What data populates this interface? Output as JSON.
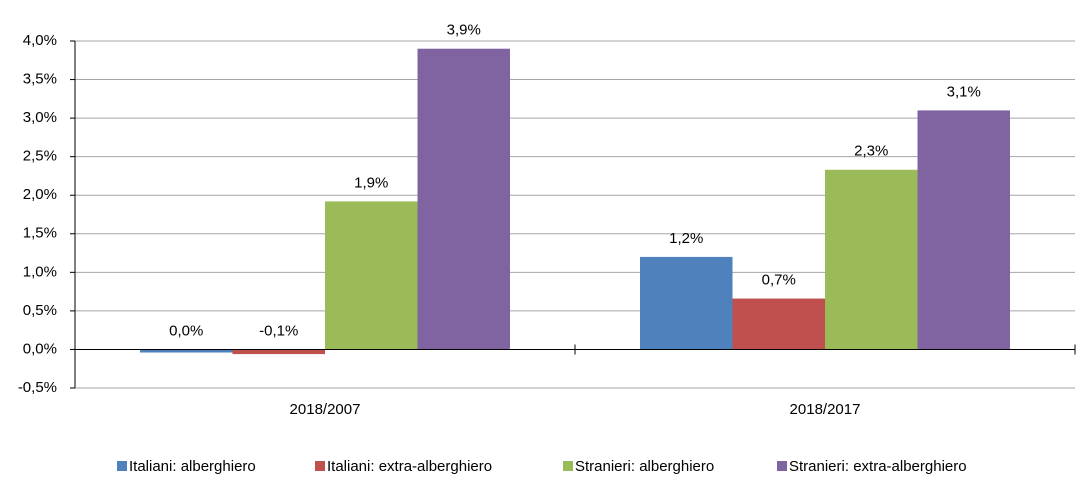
{
  "chart_data": {
    "type": "bar",
    "categories": [
      "2018/2007",
      "2018/2017"
    ],
    "series": [
      {
        "name": "Italiani: alberghiero",
        "color": "#4f81bd",
        "values": [
          -0.04,
          1.2
        ],
        "value_labels": [
          "0,0%",
          "1,2%"
        ]
      },
      {
        "name": "Italiani: extra-alberghiero",
        "color": "#c0504d",
        "values": [
          -0.06,
          0.66
        ],
        "value_labels": [
          "-0,1%",
          "0,7%"
        ]
      },
      {
        "name": "Stranieri: alberghiero",
        "color": "#9bbb59",
        "values": [
          1.92,
          2.33
        ],
        "value_labels": [
          "1,9%",
          "2,3%"
        ]
      },
      {
        "name": "Stranieri: extra-alberghiero",
        "color": "#8064a2",
        "values": [
          3.9,
          3.1
        ],
        "value_labels": [
          "3,9%",
          "3,1%"
        ]
      }
    ],
    "ylim": [
      -0.5,
      4.0
    ],
    "yticks": [
      {
        "value": -0.5,
        "label": "-0,5%"
      },
      {
        "value": 0,
        "label": "0,0%"
      },
      {
        "value": 0.5,
        "label": "0,5%"
      },
      {
        "value": 1.0,
        "label": "1,0%"
      },
      {
        "value": 1.5,
        "label": "1,5%"
      },
      {
        "value": 2.0,
        "label": "2,0%"
      },
      {
        "value": 2.5,
        "label": "2,5%"
      },
      {
        "value": 3.0,
        "label": "3,0%"
      },
      {
        "value": 3.5,
        "label": "3,5%"
      },
      {
        "value": 4.0,
        "label": "4,0%"
      }
    ],
    "grid": true,
    "legend": "bottom"
  }
}
